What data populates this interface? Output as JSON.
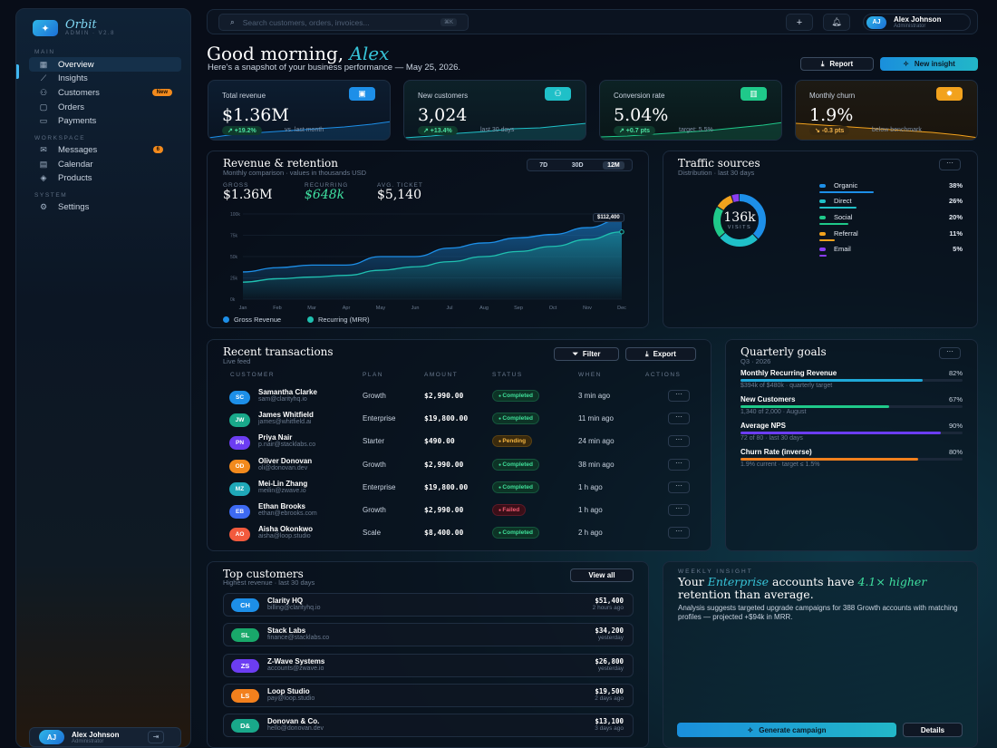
{
  "brand": {
    "name": "Orbit",
    "sub": "ADMIN · V2.8"
  },
  "sidebar": {
    "sections": {
      "main": "MAIN",
      "workspace": "WORKSPACE",
      "system": "SYSTEM"
    },
    "items": [
      {
        "label": "Overview",
        "icon": "grid-icon"
      },
      {
        "label": "Insights",
        "icon": "chart-icon"
      },
      {
        "label": "Customers",
        "icon": "users-icon",
        "badge": "New"
      },
      {
        "label": "Orders",
        "icon": "box-icon"
      },
      {
        "label": "Payments",
        "icon": "card-icon"
      },
      {
        "label": "Messages",
        "icon": "message-icon",
        "badge": "6"
      },
      {
        "label": "Calendar",
        "icon": "calendar-icon"
      },
      {
        "label": "Products",
        "icon": "layers-icon"
      },
      {
        "label": "Settings",
        "icon": "gear-icon"
      }
    ],
    "user": {
      "initials": "AJ",
      "name": "Alex Johnson",
      "role": "Administrator"
    }
  },
  "topbar": {
    "search_placeholder": "Search customers, orders, invoices...",
    "kbd": "⌘K",
    "user": {
      "initials": "AJ",
      "name": "Alex Johnson",
      "role": "Administrator"
    }
  },
  "greeting": {
    "prefix": "Good morning,",
    "name": "Alex",
    "subtitle": "Here's a snapshot of your business performance — May 25, 2026."
  },
  "actions": {
    "report": "Report",
    "new_insight": "New insight"
  },
  "kpis": [
    {
      "label": "Total revenue",
      "value": "$1.36M",
      "delta": "↗ +19.2%",
      "compare": "vs. last month",
      "color": "#1d8fe8"
    },
    {
      "label": "New customers",
      "value": "3,024",
      "delta": "↗ +13.4%",
      "compare": "last 30 days",
      "color": "#1fc0c8"
    },
    {
      "label": "Conversion rate",
      "value": "5.04%",
      "delta": "↗ +0.7 pts",
      "compare": "target: 5.5%",
      "color": "#1fc98a"
    },
    {
      "label": "Monthly churn",
      "value": "1.9%",
      "delta": "↘ -0.3 pts",
      "compare": "below benchmark",
      "color": "#f2a21d"
    }
  ],
  "revenue": {
    "title": "Revenue & retention",
    "subtitle": "Monthly comparison · values in thousands USD",
    "ranges": [
      "7D",
      "30D",
      "12M"
    ],
    "stats": [
      {
        "label": "GROSS",
        "value": "$1.36M"
      },
      {
        "label": "RECURRING",
        "value": "$648k"
      },
      {
        "label": "AVG. TICKET",
        "value": "$5,140"
      }
    ],
    "tooltip": "$112,400",
    "legend": [
      "Gross Revenue",
      "Recurring (MRR)"
    ]
  },
  "chart_data": {
    "type": "area",
    "x": [
      "Jan",
      "Feb",
      "Mar",
      "Apr",
      "May",
      "Jun",
      "Jul",
      "Aug",
      "Sep",
      "Oct",
      "Nov",
      "Dec"
    ],
    "yticks": [
      "0k",
      "25k",
      "50k",
      "75k",
      "100k"
    ],
    "ylim": [
      0,
      100
    ],
    "series": [
      {
        "name": "Gross Revenue",
        "color": "#1d8fe8",
        "values": [
          32,
          37,
          40,
          40,
          50,
          50,
          60,
          66,
          72,
          76,
          84,
          94
        ]
      },
      {
        "name": "Recurring (MRR)",
        "color": "#1fc0b0",
        "values": [
          20,
          24,
          26,
          28,
          34,
          38,
          44,
          50,
          56,
          62,
          70,
          79
        ]
      }
    ]
  },
  "traffic": {
    "title": "Traffic sources",
    "subtitle": "Distribution · last 30 days",
    "total": "136k",
    "total_label": "VISITS",
    "sources": [
      {
        "name": "Organic",
        "pct": "38%",
        "value": 38,
        "color": "#1d8fe8"
      },
      {
        "name": "Direct",
        "pct": "26%",
        "value": 26,
        "color": "#1fc0c8"
      },
      {
        "name": "Social",
        "pct": "20%",
        "value": 20,
        "color": "#1fc98a"
      },
      {
        "name": "Referral",
        "pct": "11%",
        "value": 11,
        "color": "#f2a21d"
      },
      {
        "name": "Email",
        "pct": "5%",
        "value": 5,
        "color": "#8a3df2"
      }
    ]
  },
  "transactions": {
    "title": "Recent transactions",
    "subtitle": "Live feed",
    "filter": "Filter",
    "export": "Export",
    "headers": [
      "CUSTOMER",
      "PLAN",
      "AMOUNT",
      "STATUS",
      "WHEN",
      "ACTIONS"
    ],
    "rows": [
      {
        "initials": "SC",
        "name": "Samantha Clarke",
        "email": "sam@clarityhq.io",
        "plan": "Growth",
        "amount": "$2,990.00",
        "status": "Completed",
        "when": "3 min ago",
        "color": "#1d8fe8"
      },
      {
        "initials": "JW",
        "name": "James Whitfield",
        "email": "james@whitfield.ai",
        "plan": "Enterprise",
        "amount": "$19,800.00",
        "status": "Completed",
        "when": "11 min ago",
        "color": "#19a88a"
      },
      {
        "initials": "PN",
        "name": "Priya Nair",
        "email": "p.nair@stacklabs.co",
        "plan": "Starter",
        "amount": "$490.00",
        "status": "Pending",
        "when": "24 min ago",
        "color": "#6c3df2"
      },
      {
        "initials": "OD",
        "name": "Oliver Donovan",
        "email": "oli@donovan.dev",
        "plan": "Growth",
        "amount": "$2,990.00",
        "status": "Completed",
        "when": "38 min ago",
        "color": "#f28a1d"
      },
      {
        "initials": "MZ",
        "name": "Mei-Lin Zhang",
        "email": "meilin@zwave.io",
        "plan": "Enterprise",
        "amount": "$19,800.00",
        "status": "Completed",
        "when": "1 h ago",
        "color": "#1fa8b8"
      },
      {
        "initials": "EB",
        "name": "Ethan Brooks",
        "email": "ethan@ebrooks.com",
        "plan": "Growth",
        "amount": "$2,990.00",
        "status": "Failed",
        "when": "1 h ago",
        "color": "#3d6af2"
      },
      {
        "initials": "AO",
        "name": "Aisha Okonkwo",
        "email": "aisha@loop.studio",
        "plan": "Scale",
        "amount": "$8,400.00",
        "status": "Completed",
        "when": "2 h ago",
        "color": "#f25a3d"
      }
    ]
  },
  "goals": {
    "title": "Quarterly goals",
    "subtitle": "Q3 · 2026",
    "items": [
      {
        "name": "Monthly Recurring Revenue",
        "pct": "82%",
        "value": 82,
        "sub": "$394k of $480k · quarterly target",
        "color": "#1fa8d8"
      },
      {
        "name": "New Customers",
        "pct": "67%",
        "value": 67,
        "sub": "1,340 of 2,000 · August",
        "color": "#1fc98a"
      },
      {
        "name": "Average NPS",
        "pct": "90%",
        "value": 90,
        "sub": "72 of 80 · last 30 days",
        "color": "#6c3df2"
      },
      {
        "name": "Churn Rate (inverse)",
        "pct": "80%",
        "value": 80,
        "sub": "1.9% current · target ≤ 1.5%",
        "color": "#f2801d"
      }
    ]
  },
  "top_customers": {
    "title": "Top customers",
    "subtitle": "Highest revenue · last 30 days",
    "view_all": "View all",
    "items": [
      {
        "initials": "CH",
        "name": "Clarity HQ",
        "email": "billing@clarityhq.io",
        "amount": "$51,400",
        "when": "2 hours ago",
        "color": "#1d8fe8"
      },
      {
        "initials": "SL",
        "name": "Stack Labs",
        "email": "finance@stacklabs.co",
        "amount": "$34,200",
        "when": "yesterday",
        "color": "#19a86a"
      },
      {
        "initials": "ZS",
        "name": "Z-Wave Systems",
        "email": "accounts@zwave.io",
        "amount": "$26,800",
        "when": "yesterday",
        "color": "#6c3df2"
      },
      {
        "initials": "LS",
        "name": "Loop Studio",
        "email": "pay@loop.studio",
        "amount": "$19,500",
        "when": "2 days ago",
        "color": "#f2801d"
      },
      {
        "initials": "D&",
        "name": "Donovan & Co.",
        "email": "hello@donovan.dev",
        "amount": "$13,100",
        "when": "3 days ago",
        "color": "#19a88a"
      }
    ]
  },
  "insight": {
    "label": "WEEKLY INSIGHT",
    "t1": "Your",
    "t2": "Enterprise",
    "t3": "accounts have",
    "t4": "4.1× higher",
    "t5": "retention than average.",
    "body": "Analysis suggests targeted upgrade campaigns for 388 Growth accounts with matching profiles — projected +$94k in MRR.",
    "generate": "Generate campaign",
    "details": "Details"
  }
}
